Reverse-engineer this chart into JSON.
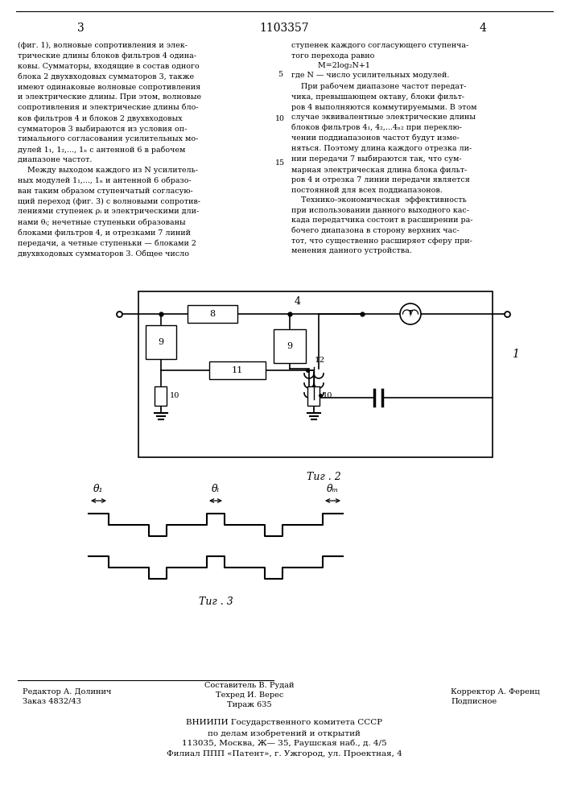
{
  "page_width": 7.07,
  "page_height": 10.0,
  "bg_color": "#ffffff",
  "header_num_left": "3",
  "header_title": "1103357",
  "header_num_right": "4",
  "left_text": "(фиг. 1), волновые сопротивления и элек-\nтрические длины блоков фильтров 4 одина-\nковы. Сумматоры, входящие в состав одного\nблока 2 двухвходовых сумматоров 3, также\nимеют одинаковые волновые сопротивления\nи электрические длины. При этом, волновые\nсопротивления и электрические длины бло-\nков фильтров 4 и блоков 2 двухвходовых\nсумматоров 3 выбираются из условия оп-\nтимального согласования усилительных мо-\nдулей 1₁, 1₂,..., 1ₙ с антенной 6 в рабочем\nдиапазоне частот.\n    Между выходом каждого из N усилитель-\nных модулей 1₁,..., 1ₙ и антенной 6 образо-\nван таким образом ступенчатый согласую-\nщий переход (фиг. 3) с волновыми сопротив-\nлениями ступенек ρᵢ и электрическими дли-\nнами θᵢ; нечетные ступеньки образованы\nблоками фильтров 4, и отрезками 7 линий\nпередачи, а четные ступеньки — блоками 2\nдвухвходовых сумматоров 3. Общее число",
  "right_text": "ступенек каждого согласующего ступенча-\nтого перехода равно\n           M=2log₂N+1\nгде N — число усилительных модулей.\n    При рабочем диапазоне частот передат-\nчика, превышающем октаву, блоки фильт-\nров 4 выполняются коммутируемыми. В этом\nслучае эквивалентные электрические длины\nблоков фильтров 4₁, 4₂,...4ₙ₂ при переклю-\nчении поддиапазонов частот будут изме-\nняться. Поэтому длина каждого отрезка ли-\nнии передачи 7 выбираются так, что сум-\nмарная электрическая длина блока фильт-\nров 4 и отрезка 7 линии передачи является\nпостоянной для всех поддиапазонов.\n    Технико-экономическая  эффективность\nпри использовании данного выходного кас-\nкада передатчика состоит в расширении ра-\nбочего диапазона в сторону верхних час-\nтот, что существенно расширяет сферу при-\nменения данного устройства.",
  "fig2_label": "Τиг . 2",
  "fig3_label": "Τиг . 3",
  "footer_left1": "Редактор А. Долинич",
  "footer_left2": "Заказ 4832/43",
  "footer_center1": "Составитель В. Рудай",
  "footer_center2": "Техред И. Верес",
  "footer_center3": "Тираж 635",
  "footer_right1": "Корректор А. Ференц",
  "footer_right2": "Подписное",
  "footer_vniiipi1": "ВНИИПИ Государственного комитета СССР",
  "footer_vniiipi2": "по делам изобретений и открытий",
  "footer_vniiipi3": "113035, Москва, Ж— 35, Раушская наб., д. 4/5",
  "footer_vniiipi4": "Филиал ППП «Патент», г. Ужгород, ул. Проектная, 4"
}
